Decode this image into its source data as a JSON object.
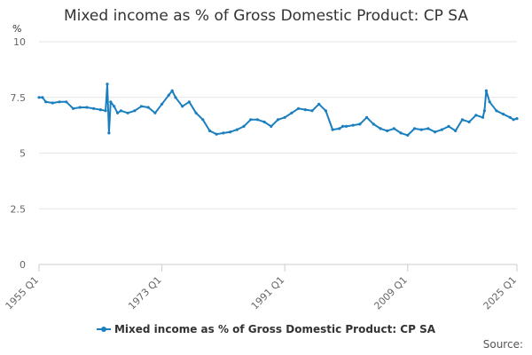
{
  "chart_data": {
    "type": "line",
    "title": "Mixed income as % of Gross Domestic Product: CP SA",
    "ylabel": "%",
    "xlabel": "",
    "ylim": [
      0,
      10
    ],
    "yticks": [
      "0",
      "2.5",
      "5",
      "7.5",
      "10"
    ],
    "xlim": [
      "1955 Q1",
      "2025 Q1"
    ],
    "xticks": [
      "1955 Q1",
      "1973 Q1",
      "1991 Q1",
      "2009 Q1",
      "2025 Q1"
    ],
    "grid": true,
    "legend_position": "bottom",
    "series": [
      {
        "name": "Mixed income as % of Gross Domestic Product: CP SA",
        "color": "#1a7fbf",
        "x": [
          1955.0,
          1955.5,
          1956.0,
          1957.0,
          1958.0,
          1959.0,
          1960.0,
          1961.0,
          1962.0,
          1963.0,
          1964.0,
          1964.75,
          1965.0,
          1965.25,
          1965.5,
          1966.0,
          1966.5,
          1967.0,
          1968.0,
          1969.0,
          1970.0,
          1971.0,
          1972.0,
          1973.0,
          1974.0,
          1974.5,
          1975.0,
          1976.0,
          1977.0,
          1978.0,
          1979.0,
          1980.0,
          1981.0,
          1982.0,
          1983.0,
          1984.0,
          1985.0,
          1986.0,
          1987.0,
          1988.0,
          1989.0,
          1990.0,
          1991.0,
          1992.0,
          1993.0,
          1994.0,
          1995.0,
          1996.0,
          1997.0,
          1998.0,
          1999.0,
          1999.5,
          2000.0,
          2001.0,
          2002.0,
          2003.0,
          2004.0,
          2005.0,
          2006.0,
          2007.0,
          2008.0,
          2009.0,
          2010.0,
          2011.0,
          2012.0,
          2013.0,
          2014.0,
          2015.0,
          2016.0,
          2017.0,
          2018.0,
          2019.0,
          2020.0,
          2020.25,
          2020.5,
          2021.0,
          2022.0,
          2023.0,
          2024.0,
          2024.5,
          2025.0
        ],
        "values": [
          7.5,
          7.5,
          7.3,
          7.25,
          7.3,
          7.3,
          7.0,
          7.05,
          7.05,
          7.0,
          6.95,
          6.9,
          8.1,
          5.9,
          7.3,
          7.1,
          6.8,
          6.9,
          6.8,
          6.9,
          7.1,
          7.05,
          6.8,
          7.2,
          7.6,
          7.8,
          7.5,
          7.1,
          7.3,
          6.8,
          6.5,
          6.0,
          5.85,
          5.9,
          5.95,
          6.05,
          6.2,
          6.5,
          6.5,
          6.4,
          6.2,
          6.5,
          6.6,
          6.8,
          7.0,
          6.95,
          6.9,
          7.2,
          6.9,
          6.05,
          6.1,
          6.2,
          6.2,
          6.25,
          6.3,
          6.6,
          6.3,
          6.1,
          6.0,
          6.1,
          5.9,
          5.8,
          6.1,
          6.05,
          6.1,
          5.95,
          6.05,
          6.2,
          6.0,
          6.5,
          6.4,
          6.7,
          6.6,
          6.9,
          7.8,
          7.3,
          6.9,
          6.75,
          6.6,
          6.5,
          6.55
        ]
      }
    ]
  },
  "legend": {
    "label": "Mixed income as % of Gross Domestic Product: CP SA"
  },
  "source": "Source:"
}
